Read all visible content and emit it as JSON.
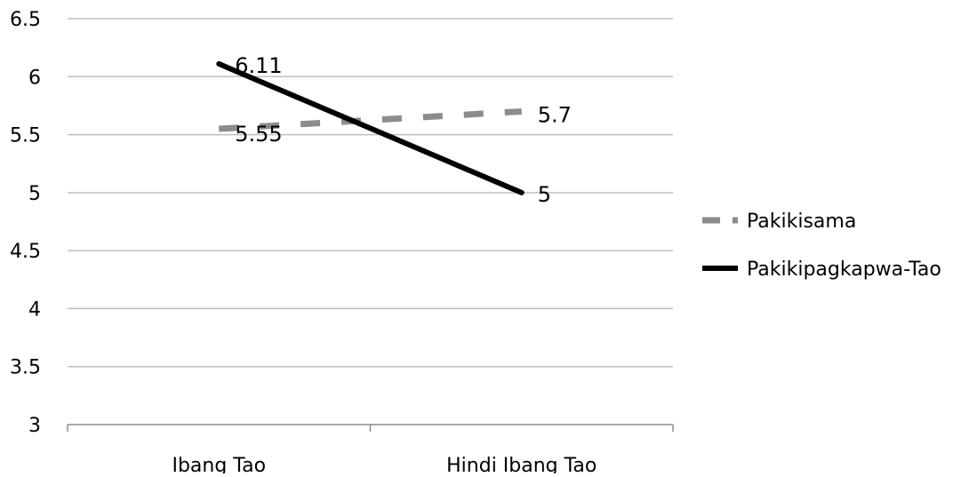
{
  "chart_data": {
    "type": "line",
    "categories": [
      "Ibang Tao",
      "Hindi Ibang Tao"
    ],
    "ylim": [
      3,
      6.5
    ],
    "yticks": [
      3,
      3.5,
      4,
      4.5,
      5,
      5.5,
      6,
      6.5
    ],
    "ytick_labels": [
      "3",
      "3.5",
      "4",
      "4.5",
      "5",
      "5.5",
      "6",
      "6.5"
    ],
    "grid": true,
    "legend_position": "right",
    "series": [
      {
        "name": "Pakikisama",
        "values": [
          5.55,
          5.7
        ],
        "labels": [
          "5.55",
          "5.7"
        ],
        "color": "#8c8c8c",
        "style": "dashed"
      },
      {
        "name": "Pakikipagkapwa-Tao",
        "values": [
          6.11,
          5
        ],
        "labels": [
          "6.11",
          "5"
        ],
        "color": "#000000",
        "style": "solid"
      }
    ]
  }
}
